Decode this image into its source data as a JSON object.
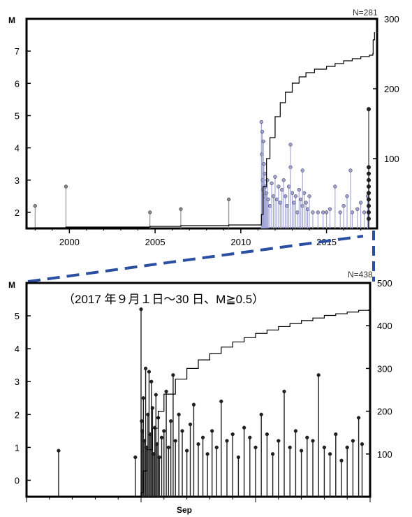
{
  "chart_data": [
    {
      "type": "scatter",
      "style": "stem",
      "ylabel": "M",
      "count_label": "N=281",
      "xlim": [
        1997.5,
        2017.95
      ],
      "ylim": [
        1.5,
        8.0
      ],
      "y2lim": [
        0,
        300
      ],
      "x_ticks": [
        2000,
        2005,
        2010,
        2015
      ],
      "y_ticks": [
        2,
        3,
        4,
        5,
        6,
        7
      ],
      "y2_ticks": [
        100,
        200,
        300
      ],
      "colors": {
        "older": "#888888",
        "recent": "#9fa3d6",
        "highlight": "#222222",
        "cumulative": "#000000"
      },
      "series": [
        {
          "key": "older",
          "x": [
            1998.0,
            1999.8,
            2004.7,
            2006.5,
            2009.3
          ],
          "y": [
            2.2,
            2.8,
            2.0,
            2.1,
            2.4
          ]
        },
        {
          "key": "recent",
          "x": [
            2011.2,
            2011.22,
            2011.25,
            2011.28,
            2011.3,
            2011.32,
            2011.35,
            2011.38,
            2011.4,
            2011.45,
            2011.5,
            2011.55,
            2011.6,
            2011.7,
            2011.8,
            2011.9,
            2012.0,
            2012.1,
            2012.2,
            2012.3,
            2012.4,
            2012.5,
            2012.6,
            2012.7,
            2012.8,
            2012.9,
            2013.0,
            2013.1,
            2013.2,
            2013.3,
            2013.4,
            2013.5,
            2013.6,
            2013.7,
            2013.8,
            2013.9,
            2014.0,
            2014.2,
            2014.5,
            2014.8,
            2015.0,
            2015.2,
            2015.5,
            2015.8,
            2016.0,
            2016.2,
            2016.5,
            2016.8,
            2017.0,
            2017.2,
            2017.4,
            2012.9,
            2013.6,
            2016.4
          ],
          "y": [
            4.8,
            3.8,
            4.5,
            3.0,
            2.7,
            4.2,
            3.5,
            2.5,
            3.2,
            2.8,
            2.6,
            3.0,
            2.4,
            2.2,
            2.9,
            2.5,
            3.1,
            2.4,
            2.8,
            2.3,
            2.7,
            3.0,
            2.5,
            2.2,
            2.8,
            3.4,
            2.6,
            2.3,
            2.5,
            2.0,
            2.7,
            2.4,
            2.2,
            2.6,
            2.3,
            2.1,
            2.5,
            2.0,
            2.0,
            2.0,
            2.0,
            2.1,
            2.8,
            2.0,
            2.2,
            2.5,
            2.0,
            2.1,
            2.3,
            2.0,
            2.5,
            4.1,
            3.3,
            3.3
          ]
        },
        {
          "key": "highlight",
          "x": [
            17.72,
            17.72,
            17.72,
            17.72,
            17.72,
            17.72,
            17.72,
            17.72,
            17.72,
            17.72
          ],
          "y": [
            5.2,
            3.4,
            3.2,
            3.0,
            2.8,
            2.6,
            2.4,
            2.2,
            2.0,
            1.8
          ]
        }
      ],
      "cumulative": {
        "x": [
          1997.5,
          1998.0,
          1999.8,
          2004.7,
          2006.5,
          2009.3,
          2011.19,
          2011.2,
          2011.3,
          2011.5,
          2011.7,
          2012.0,
          2012.3,
          2012.6,
          2013.0,
          2013.4,
          2013.8,
          2014.3,
          2015.0,
          2015.5,
          2016.0,
          2016.5,
          2017.0,
          2017.5,
          2017.7,
          2017.72,
          2017.8
        ],
        "y": [
          0,
          1,
          2,
          3,
          4,
          5,
          6,
          20,
          60,
          100,
          130,
          160,
          180,
          195,
          208,
          217,
          223,
          228,
          232,
          236,
          240,
          243,
          246,
          248,
          250,
          270,
          281
        ]
      }
    },
    {
      "type": "scatter",
      "style": "stem",
      "subtitle": "（2017 年９月１日～30 日、M≧0.5）",
      "ylabel": "M",
      "count_label": "N=438",
      "xlabel_tick": "Sep",
      "xlim": [
        0,
        30
      ],
      "ylim": [
        -0.5,
        6.0
      ],
      "y2lim": [
        0,
        500
      ],
      "y_ticks": [
        0,
        1,
        2,
        3,
        4,
        5
      ],
      "y2_ticks": [
        100,
        200,
        300,
        400,
        500
      ],
      "colors": {
        "events": "#222222",
        "cumulative": "#000000"
      },
      "series": [
        {
          "key": "events",
          "x": [
            2.8,
            9.5,
            10.0,
            10.05,
            10.1,
            10.2,
            10.3,
            10.4,
            10.5,
            10.6,
            10.7,
            10.8,
            10.9,
            11.0,
            11.1,
            11.2,
            11.3,
            11.4,
            11.5,
            11.6,
            11.8,
            12.0,
            12.2,
            12.4,
            12.6,
            12.8,
            13.0,
            13.3,
            13.6,
            14.0,
            14.3,
            14.6,
            15.0,
            15.4,
            15.8,
            16.2,
            16.6,
            17.0,
            17.5,
            18.0,
            18.5,
            19.0,
            19.5,
            20.0,
            20.5,
            21.0,
            21.5,
            22.0,
            22.5,
            23.0,
            23.5,
            24.0,
            24.5,
            25.0,
            25.5,
            26.0,
            26.5,
            27.0,
            27.5,
            28.0,
            28.5,
            29.0,
            29.3
          ],
          "y": [
            0.9,
            0.7,
            5.2,
            1.8,
            1.5,
            2.5,
            1.2,
            3.4,
            1.0,
            2.0,
            3.3,
            1.4,
            3.0,
            2.2,
            0.8,
            1.6,
            2.6,
            1.1,
            1.9,
            0.7,
            1.3,
            1.5,
            2.7,
            1.0,
            1.8,
            3.2,
            1.2,
            2.0,
            1.5,
            0.9,
            1.7,
            2.3,
            1.1,
            1.3,
            0.8,
            1.5,
            1.0,
            2.4,
            1.2,
            1.4,
            0.7,
            1.6,
            1.3,
            1.0,
            2.0,
            1.4,
            0.8,
            1.2,
            2.7,
            1.0,
            1.5,
            0.9,
            1.3,
            1.2,
            3.2,
            1.0,
            0.8,
            1.4,
            0.6,
            1.0,
            1.2,
            1.9,
            1.1
          ]
        }
      ],
      "cumulative": {
        "x": [
          0,
          9.95,
          10.0,
          10.2,
          10.5,
          11.0,
          11.5,
          12.0,
          13.0,
          14.0,
          15.0,
          16.0,
          17.0,
          18.0,
          19.0,
          20.0,
          21.0,
          22.0,
          23.0,
          24.0,
          25.0,
          26.0,
          27.0,
          28.0,
          29.0,
          30.0
        ],
        "y": [
          0,
          1,
          10,
          60,
          110,
          160,
          200,
          240,
          275,
          300,
          320,
          335,
          350,
          362,
          372,
          382,
          390,
          398,
          405,
          412,
          418,
          424,
          428,
          432,
          436,
          438
        ]
      }
    }
  ]
}
